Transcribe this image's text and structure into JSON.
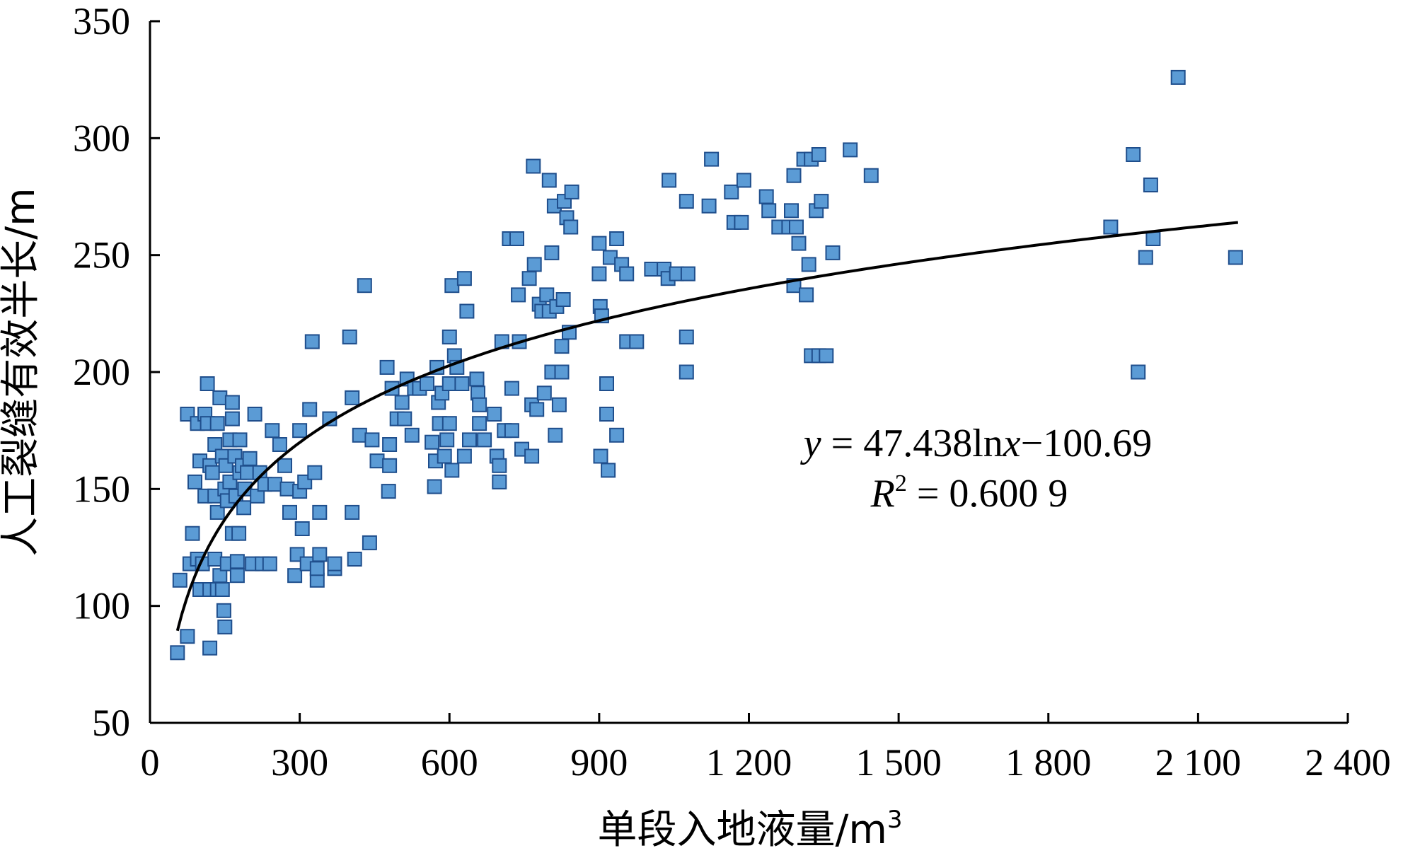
{
  "chart_data": {
    "type": "scatter",
    "xlabel": "单段入地液量/m",
    "xlabel_sup": "3",
    "ylabel": "人工裂缝有效半长/m",
    "xlim": [
      0,
      2400
    ],
    "ylim": [
      50,
      350
    ],
    "x_ticks": [
      0,
      300,
      600,
      900,
      1200,
      1500,
      1800,
      2100,
      2400
    ],
    "x_tick_labels": [
      "0",
      "300",
      "600",
      "900",
      "1 200",
      "1 500",
      "1 800",
      "2 100",
      "2 400"
    ],
    "y_ticks": [
      50,
      100,
      150,
      200,
      250,
      300,
      350
    ],
    "y_tick_labels": [
      "50",
      "100",
      "150",
      "200",
      "250",
      "300",
      "350"
    ],
    "grid": false,
    "marker": "square",
    "point_color": "#5b9bd5",
    "point_edge_color": "#1f4e8c",
    "fit": {
      "type": "log",
      "a": 47.438,
      "b": -100.69,
      "x_range": [
        55,
        2180
      ],
      "equation_y": "y",
      "equation_rest": " = 47.438ln",
      "equation_x": "x",
      "equation_tail": "−100.69",
      "r2_label": "R",
      "r2_sup": "2",
      "r2_value": " = 0.600 9"
    },
    "points": [
      [
        55,
        80
      ],
      [
        60,
        111
      ],
      [
        75,
        87
      ],
      [
        80,
        118
      ],
      [
        75,
        182
      ],
      [
        85,
        131
      ],
      [
        90,
        153
      ],
      [
        95,
        178
      ],
      [
        95,
        120
      ],
      [
        100,
        162
      ],
      [
        100,
        107
      ],
      [
        105,
        118
      ],
      [
        110,
        182
      ],
      [
        110,
        147
      ],
      [
        115,
        195
      ],
      [
        115,
        178
      ],
      [
        120,
        160
      ],
      [
        120,
        107
      ],
      [
        120,
        82
      ],
      [
        125,
        157
      ],
      [
        130,
        147
      ],
      [
        130,
        120
      ],
      [
        130,
        169
      ],
      [
        135,
        178
      ],
      [
        135,
        140
      ],
      [
        135,
        107
      ],
      [
        140,
        113
      ],
      [
        140,
        189
      ],
      [
        145,
        164
      ],
      [
        145,
        107
      ],
      [
        148,
        98
      ],
      [
        150,
        91
      ],
      [
        150,
        150
      ],
      [
        152,
        160
      ],
      [
        155,
        145
      ],
      [
        155,
        118
      ],
      [
        160,
        171
      ],
      [
        160,
        153
      ],
      [
        165,
        187
      ],
      [
        165,
        180
      ],
      [
        165,
        131
      ],
      [
        170,
        164
      ],
      [
        172,
        147
      ],
      [
        175,
        113
      ],
      [
        175,
        119
      ],
      [
        178,
        131
      ],
      [
        180,
        171
      ],
      [
        180,
        157
      ],
      [
        185,
        160
      ],
      [
        188,
        142
      ],
      [
        190,
        150
      ],
      [
        195,
        157
      ],
      [
        200,
        163
      ],
      [
        205,
        118
      ],
      [
        210,
        182
      ],
      [
        215,
        147
      ],
      [
        220,
        157
      ],
      [
        225,
        118
      ],
      [
        230,
        152
      ],
      [
        240,
        118
      ],
      [
        245,
        175
      ],
      [
        250,
        152
      ],
      [
        260,
        169
      ],
      [
        270,
        160
      ],
      [
        275,
        150
      ],
      [
        280,
        140
      ],
      [
        290,
        113
      ],
      [
        295,
        122
      ],
      [
        300,
        149
      ],
      [
        300,
        175
      ],
      [
        305,
        133
      ],
      [
        310,
        153
      ],
      [
        315,
        118
      ],
      [
        320,
        184
      ],
      [
        325,
        213
      ],
      [
        330,
        157
      ],
      [
        335,
        111
      ],
      [
        335,
        116
      ],
      [
        340,
        140
      ],
      [
        340,
        122
      ],
      [
        360,
        180
      ],
      [
        370,
        116
      ],
      [
        370,
        118
      ],
      [
        400,
        215
      ],
      [
        405,
        140
      ],
      [
        405,
        189
      ],
      [
        410,
        120
      ],
      [
        420,
        173
      ],
      [
        430,
        237
      ],
      [
        440,
        127
      ],
      [
        445,
        171
      ],
      [
        455,
        162
      ],
      [
        475,
        202
      ],
      [
        478,
        149
      ],
      [
        480,
        160
      ],
      [
        480,
        169
      ],
      [
        485,
        193
      ],
      [
        495,
        180
      ],
      [
        505,
        187
      ],
      [
        510,
        180
      ],
      [
        515,
        197
      ],
      [
        525,
        173
      ],
      [
        530,
        193
      ],
      [
        540,
        193
      ],
      [
        555,
        195
      ],
      [
        565,
        170
      ],
      [
        570,
        151
      ],
      [
        572,
        162
      ],
      [
        575,
        202
      ],
      [
        578,
        187
      ],
      [
        580,
        178
      ],
      [
        585,
        191
      ],
      [
        590,
        164
      ],
      [
        595,
        171
      ],
      [
        600,
        178
      ],
      [
        600,
        215
      ],
      [
        600,
        195
      ],
      [
        605,
        237
      ],
      [
        605,
        158
      ],
      [
        610,
        207
      ],
      [
        615,
        202
      ],
      [
        625,
        195
      ],
      [
        630,
        164
      ],
      [
        630,
        240
      ],
      [
        635,
        226
      ],
      [
        640,
        171
      ],
      [
        655,
        197
      ],
      [
        657,
        191
      ],
      [
        660,
        178
      ],
      [
        660,
        186
      ],
      [
        670,
        171
      ],
      [
        690,
        182
      ],
      [
        695,
        164
      ],
      [
        700,
        160
      ],
      [
        700,
        153
      ],
      [
        705,
        213
      ],
      [
        710,
        175
      ],
      [
        720,
        257
      ],
      [
        725,
        193
      ],
      [
        725,
        175
      ],
      [
        735,
        257
      ],
      [
        738,
        233
      ],
      [
        740,
        213
      ],
      [
        745,
        167
      ],
      [
        760,
        240
      ],
      [
        765,
        164
      ],
      [
        765,
        186
      ],
      [
        768,
        288
      ],
      [
        770,
        246
      ],
      [
        775,
        184
      ],
      [
        780,
        229
      ],
      [
        785,
        226
      ],
      [
        790,
        191
      ],
      [
        795,
        233
      ],
      [
        800,
        282
      ],
      [
        800,
        226
      ],
      [
        805,
        251
      ],
      [
        805,
        200
      ],
      [
        810,
        271
      ],
      [
        812,
        173
      ],
      [
        815,
        228
      ],
      [
        820,
        186
      ],
      [
        825,
        200
      ],
      [
        825,
        211
      ],
      [
        828,
        231
      ],
      [
        830,
        273
      ],
      [
        835,
        266
      ],
      [
        840,
        217
      ],
      [
        843,
        262
      ],
      [
        845,
        277
      ],
      [
        900,
        255
      ],
      [
        900,
        242
      ],
      [
        902,
        228
      ],
      [
        903,
        164
      ],
      [
        905,
        224
      ],
      [
        915,
        195
      ],
      [
        915,
        182
      ],
      [
        918,
        158
      ],
      [
        922,
        249
      ],
      [
        935,
        257
      ],
      [
        935,
        173
      ],
      [
        945,
        246
      ],
      [
        955,
        213
      ],
      [
        955,
        242
      ],
      [
        975,
        213
      ],
      [
        1005,
        244
      ],
      [
        1030,
        244
      ],
      [
        1038,
        240
      ],
      [
        1040,
        282
      ],
      [
        1055,
        242
      ],
      [
        1075,
        273
      ],
      [
        1075,
        215
      ],
      [
        1075,
        200
      ],
      [
        1078,
        242
      ],
      [
        1120,
        271
      ],
      [
        1125,
        291
      ],
      [
        1165,
        277
      ],
      [
        1170,
        264
      ],
      [
        1185,
        264
      ],
      [
        1190,
        282
      ],
      [
        1235,
        275
      ],
      [
        1240,
        269
      ],
      [
        1260,
        262
      ],
      [
        1280,
        262
      ],
      [
        1285,
        269
      ],
      [
        1290,
        284
      ],
      [
        1290,
        237
      ],
      [
        1295,
        262
      ],
      [
        1300,
        255
      ],
      [
        1310,
        291
      ],
      [
        1315,
        233
      ],
      [
        1320,
        246
      ],
      [
        1325,
        291
      ],
      [
        1325,
        207
      ],
      [
        1335,
        269
      ],
      [
        1340,
        293
      ],
      [
        1340,
        207
      ],
      [
        1345,
        273
      ],
      [
        1355,
        207
      ],
      [
        1368,
        251
      ],
      [
        1403,
        295
      ],
      [
        1445,
        284
      ],
      [
        1925,
        262
      ],
      [
        1970,
        293
      ],
      [
        1980,
        200
      ],
      [
        1995,
        249
      ],
      [
        2005,
        280
      ],
      [
        2010,
        257
      ],
      [
        2060,
        326
      ],
      [
        2175,
        249
      ]
    ]
  }
}
